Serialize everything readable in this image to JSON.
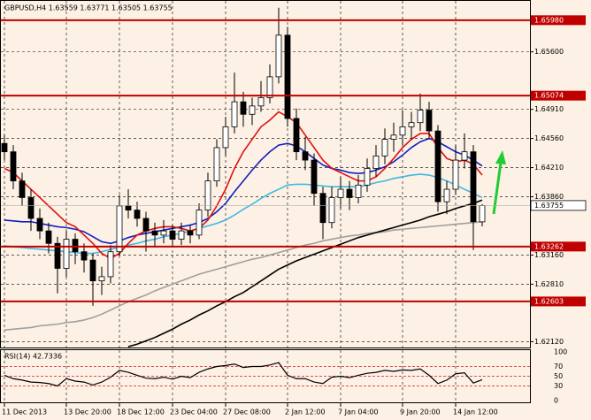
{
  "chart_data": {
    "type": "candlestick",
    "title": "GBPUSD,H4 1.63559 1.63771 1.63505 1.63755",
    "categories": [
      "11 Dec 2013",
      null,
      null,
      null,
      null,
      null,
      null,
      "13 Dec 20:00",
      null,
      null,
      null,
      null,
      null,
      "18 Dec 12:00",
      null,
      null,
      null,
      null,
      null,
      "23 Dec 04:00",
      null,
      null,
      null,
      null,
      null,
      "27 Dec 08:00",
      null,
      null,
      null,
      null,
      null,
      null,
      "2 Jan 12:00",
      null,
      null,
      null,
      null,
      null,
      "7 Jan 04:00",
      null,
      null,
      null,
      null,
      null,
      null,
      "9 Jan 20:00",
      null,
      null,
      null,
      null,
      null,
      "14 Jan 12:00",
      null,
      null,
      null
    ],
    "open": [
      1.645,
      1.644,
      1.6405,
      1.6385,
      1.636,
      1.6345,
      1.633,
      1.63,
      1.6335,
      1.632,
      1.631,
      1.6285,
      1.629,
      1.632,
      1.6375,
      1.637,
      1.636,
      1.6345,
      1.634,
      1.6345,
      1.6335,
      1.6345,
      1.634,
      1.637,
      1.6405,
      1.6445,
      1.647,
      1.65,
      1.6485,
      1.6495,
      1.6505,
      1.653,
      1.658,
      1.648,
      1.644,
      1.643,
      1.639,
      1.6355,
      1.6385,
      1.6395,
      1.6385,
      1.64,
      1.642,
      1.6435,
      1.6455,
      1.646,
      1.647,
      1.6475,
      1.649,
      1.6465,
      1.638,
      1.6395,
      1.643,
      1.644,
      1.63559
    ],
    "high": [
      1.646,
      1.6448,
      1.6415,
      1.6395,
      1.6372,
      1.6355,
      1.6338,
      1.6345,
      1.6342,
      1.633,
      1.6318,
      1.6302,
      1.6328,
      1.6388,
      1.6395,
      1.638,
      1.6368,
      1.6355,
      1.6358,
      1.6352,
      1.6355,
      1.6352,
      1.6378,
      1.6415,
      1.6455,
      1.6482,
      1.6535,
      1.6512,
      1.6505,
      1.6525,
      1.6545,
      1.6613,
      1.659,
      1.6492,
      1.6458,
      1.6438,
      1.6398,
      1.6398,
      1.641,
      1.6405,
      1.6412,
      1.6432,
      1.6448,
      1.6468,
      1.6475,
      1.649,
      1.6488,
      1.651,
      1.65,
      1.6472,
      1.6405,
      1.6448,
      1.6462,
      1.6448,
      1.63771
    ],
    "low": [
      1.643,
      1.6395,
      1.6375,
      1.6345,
      1.6335,
      1.6318,
      1.627,
      1.629,
      1.6305,
      1.6295,
      1.6255,
      1.6268,
      1.6282,
      1.6315,
      1.636,
      1.635,
      1.632,
      1.6325,
      1.633,
      1.6325,
      1.6328,
      1.633,
      1.6335,
      1.6362,
      1.6398,
      1.6435,
      1.6462,
      1.647,
      1.6472,
      1.6488,
      1.6498,
      1.6522,
      1.647,
      1.643,
      1.6418,
      1.6375,
      1.6335,
      1.6348,
      1.6372,
      1.637,
      1.6378,
      1.6392,
      1.641,
      1.6425,
      1.644,
      1.6448,
      1.6455,
      1.6465,
      1.6455,
      1.6368,
      1.6365,
      1.6388,
      1.642,
      1.6322,
      1.63505
    ],
    "close": [
      1.644,
      1.6405,
      1.6385,
      1.636,
      1.6345,
      1.633,
      1.63,
      1.6335,
      1.632,
      1.631,
      1.6285,
      1.629,
      1.632,
      1.6375,
      1.637,
      1.636,
      1.6345,
      1.634,
      1.6345,
      1.6335,
      1.6345,
      1.634,
      1.637,
      1.6405,
      1.6445,
      1.647,
      1.65,
      1.6485,
      1.6495,
      1.6505,
      1.653,
      1.658,
      1.648,
      1.644,
      1.643,
      1.639,
      1.6355,
      1.6385,
      1.6395,
      1.6385,
      1.64,
      1.642,
      1.6435,
      1.6455,
      1.646,
      1.647,
      1.6475,
      1.649,
      1.6465,
      1.638,
      1.6395,
      1.643,
      1.644,
      1.6356,
      1.63755
    ],
    "up_color": "#ffffff",
    "down_color": "#000000",
    "series": [
      {
        "color": "#a0a0a0",
        "values": [
          1.6226,
          1.6227,
          1.6228,
          1.6229,
          1.6231,
          1.6232,
          1.6233,
          1.6235,
          1.6236,
          1.6238,
          1.6241,
          1.6245,
          1.625,
          1.6255,
          1.626,
          1.6264,
          1.6268,
          1.6273,
          1.6277,
          1.6281,
          1.6285,
          1.6289,
          1.6293,
          1.6296,
          1.6299,
          1.6302,
          1.6305,
          1.6308,
          1.6311,
          1.6313,
          1.6316,
          1.6319,
          1.6322,
          1.6325,
          1.6328,
          1.633,
          1.6333,
          1.6335,
          1.6337,
          1.6339,
          1.634,
          1.6342,
          1.6343,
          1.6344,
          1.6346,
          1.6347,
          1.6348,
          1.6349,
          1.635,
          1.6351,
          1.6352,
          1.6353,
          1.6354,
          1.6355,
          1.6356
        ]
      },
      {
        "color": "#000000",
        "values": [
          null,
          null,
          null,
          null,
          null,
          null,
          null,
          null,
          null,
          null,
          null,
          null,
          null,
          null,
          1.6206,
          1.6209,
          1.6213,
          1.6217,
          1.6222,
          1.6227,
          1.6233,
          1.6238,
          1.6244,
          1.6249,
          1.6255,
          1.626,
          1.6266,
          1.6271,
          1.6278,
          1.6285,
          1.6292,
          1.6299,
          1.6304,
          1.6309,
          1.6313,
          1.6317,
          1.6321,
          1.6325,
          1.6329,
          1.6333,
          1.6337,
          1.634,
          1.6343,
          1.6346,
          1.6349,
          1.6352,
          1.6355,
          1.6358,
          1.6362,
          1.6365,
          1.6368,
          1.6372,
          1.6375,
          1.6378,
          1.6382
        ]
      },
      {
        "color": "#40b8e0",
        "values": [
          1.6327,
          1.6326,
          1.6325,
          1.6324,
          1.6323,
          1.6322,
          1.6321,
          1.632,
          1.6319,
          1.6318,
          1.6318,
          1.632,
          1.6323,
          1.6325,
          1.6328,
          1.633,
          1.6333,
          1.6335,
          1.6338,
          1.634,
          1.6342,
          1.6345,
          1.6348,
          1.6351,
          1.6354,
          1.6358,
          1.6364,
          1.6371,
          1.6377,
          1.6384,
          1.639,
          1.6395,
          1.64,
          1.6401,
          1.6401,
          1.64,
          1.6399,
          1.6398,
          1.6398,
          1.6398,
          1.6398,
          1.64,
          1.6403,
          1.6405,
          1.6408,
          1.641,
          1.6412,
          1.6413,
          1.6412,
          1.6409,
          1.6405,
          1.64,
          1.6395,
          1.639,
          1.6385
        ]
      },
      {
        "color": "#1020c0",
        "values": [
          1.6358,
          1.6357,
          1.6356,
          1.6356,
          1.6354,
          1.6352,
          1.635,
          1.6349,
          1.6347,
          1.6344,
          1.6338,
          1.6332,
          1.633,
          1.6333,
          1.6337,
          1.634,
          1.6342,
          1.6344,
          1.6346,
          1.6348,
          1.635,
          1.6352,
          1.6355,
          1.636,
          1.6368,
          1.6378,
          1.6392,
          1.6405,
          1.6418,
          1.643,
          1.644,
          1.6448,
          1.645,
          1.6447,
          1.644,
          1.6432,
          1.6424,
          1.642,
          1.6418,
          1.6415,
          1.6414,
          1.6415,
          1.6418,
          1.6422,
          1.6428,
          1.6436,
          1.6445,
          1.6452,
          1.6456,
          1.6452,
          1.6446,
          1.644,
          1.6436,
          1.643,
          1.6423
        ]
      },
      {
        "color": "#e01010",
        "values": [
          1.642,
          1.6415,
          1.6405,
          1.6395,
          1.6385,
          1.6375,
          1.6365,
          1.6355,
          1.635,
          1.634,
          1.633,
          1.6318,
          1.6312,
          1.6318,
          1.633,
          1.634,
          1.6345,
          1.6348,
          1.635,
          1.635,
          1.6348,
          1.6345,
          1.6348,
          1.6358,
          1.6375,
          1.6395,
          1.642,
          1.644,
          1.6455,
          1.647,
          1.6478,
          1.6488,
          1.6482,
          1.6475,
          1.646,
          1.6445,
          1.643,
          1.642,
          1.6415,
          1.641,
          1.6405,
          1.6405,
          1.641,
          1.642,
          1.6432,
          1.6445,
          1.6455,
          1.6462,
          1.6462,
          1.6445,
          1.6432,
          1.6428,
          1.643,
          1.6425,
          1.6412
        ]
      }
    ],
    "ylim": [
      1.6205,
      1.6618
    ],
    "yticks": [
      {
        "value": 1.656,
        "label": "1.65600"
      },
      {
        "value": 1.6491,
        "label": "1.64910"
      },
      {
        "value": 1.6456,
        "label": "1.64560"
      },
      {
        "value": 1.6421,
        "label": "1.64210"
      },
      {
        "value": 1.6386,
        "label": "1.63860"
      },
      {
        "value": 1.6316,
        "label": "1.63160"
      },
      {
        "value": 1.6281,
        "label": "1.62810"
      },
      {
        "value": 1.6212,
        "label": "1.62120"
      }
    ],
    "grid": true,
    "levels": [
      {
        "value": 1.6598,
        "label": "1.65980"
      },
      {
        "value": 1.65074,
        "label": "1.65074"
      },
      {
        "value": 1.63262,
        "label": "1.63262"
      },
      {
        "value": 1.62603,
        "label": "1.62603"
      }
    ],
    "level_color": "#c00000",
    "current_price": 1.63755,
    "rsi": {
      "label": "RSI(14) 42.7336",
      "color": "#000000",
      "level_color": "#d02020",
      "ylim": [
        0,
        100
      ],
      "yticks": [
        100,
        70,
        50,
        30,
        0
      ],
      "values": [
        52,
        45,
        42,
        38,
        37,
        35,
        30,
        45,
        40,
        38,
        32,
        38,
        48,
        62,
        58,
        52,
        46,
        45,
        48,
        44,
        50,
        47,
        58,
        65,
        70,
        72,
        75,
        68,
        70,
        70,
        73,
        78,
        52,
        45,
        45,
        38,
        35,
        48,
        50,
        47,
        52,
        56,
        58,
        62,
        60,
        63,
        62,
        65,
        52,
        35,
        42,
        55,
        57,
        36,
        42.7336
      ]
    }
  }
}
